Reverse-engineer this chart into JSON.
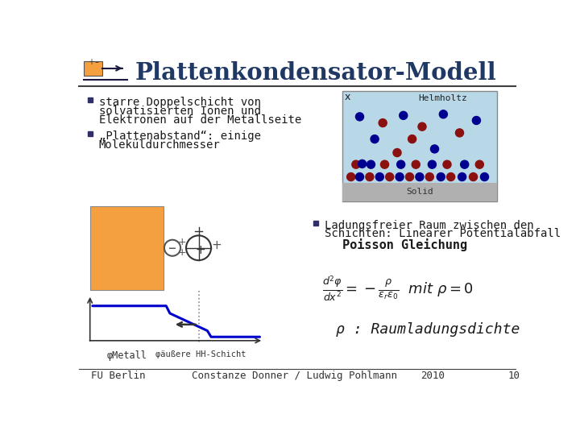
{
  "title": "Plattenkondensator-Modell",
  "title_color": "#1F3864",
  "bg_color": "#FFFFFF",
  "bullet1_line1": "starre Doppelschicht von",
  "bullet1_line2": "solvatisierten Ionen und",
  "bullet1_line3": "Elektronen auf der Metallseite",
  "bullet2_line1": "„Plattenabstand“: einige",
  "bullet2_line2": "Moleküldurchmesser",
  "bullet3_line1": "Ladungsfreier Raum zwischen den",
  "bullet3_line2": "Schichten: Linearer Potentialabfall",
  "bullet3_line3": "Poisson Gleichung",
  "footer_left": "FU Berlin",
  "footer_mid": "Constanze Donner / Ludwig Pohlmann",
  "footer_year": "2010",
  "footer_page": "10",
  "rho_text": "ρ : Raumladungsdichte",
  "phi_metall": "φMetall",
  "phi_aussen": "φäußere HH-Schicht",
  "orange_color": "#F5A040",
  "blue_line_color": "#0000CC",
  "helmholtz_bg": "#B8D8E8",
  "solid_bg": "#B0B0B0",
  "dark_red_dot": "#8B1010",
  "blue_dot": "#000090"
}
